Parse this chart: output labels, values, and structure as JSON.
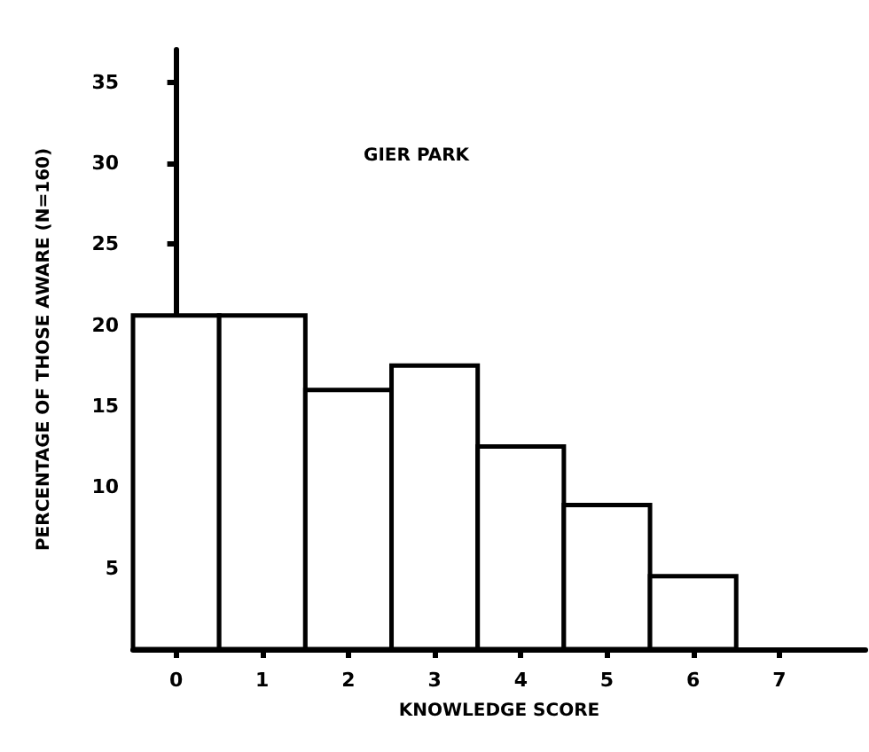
{
  "chart_data": {
    "type": "histogram",
    "title": "GIER PARK",
    "xlabel": "KNOWLEDGE SCORE",
    "ylabel": "PERCENTAGE OF THOSE AWARE (N=160)",
    "bins": [
      -0.5,
      0.5,
      1.5,
      2.5,
      3.5,
      4.5,
      5.5,
      6.5
    ],
    "values": [
      20.6,
      20.6,
      16.0,
      17.5,
      12.5,
      8.9,
      4.5
    ],
    "color": "#ffffff",
    "xlim": [
      -0.5,
      8
    ],
    "xticks": [
      0,
      1,
      2,
      3,
      4,
      5,
      6,
      7
    ],
    "ylim": [
      0,
      37
    ],
    "yticks": [
      5,
      10,
      15,
      20,
      25,
      30,
      35
    ]
  }
}
